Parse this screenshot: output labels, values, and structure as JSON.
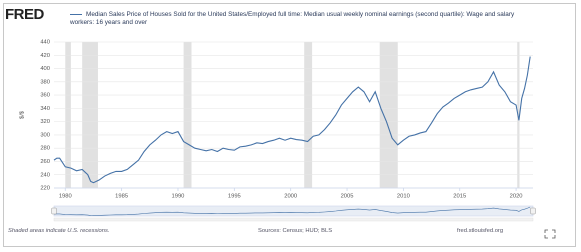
{
  "chart_data": {
    "type": "line",
    "logo": "FRED",
    "ylabel": "$/$",
    "note": "Shaded areas indicate U.S. recessions.",
    "source": "Sources: Census; HUD; BLS",
    "site": "fred.stlouisfed.org",
    "xlim": [
      1979,
      2021.5
    ],
    "ylim": [
      220,
      440
    ],
    "xticks": [
      1980,
      1985,
      1990,
      1995,
      2000,
      2005,
      2010,
      2015,
      2020
    ],
    "yticks": [
      220,
      240,
      260,
      280,
      300,
      320,
      340,
      360,
      380,
      400,
      420,
      440
    ],
    "grid": true,
    "recessions": [
      [
        1980.0,
        1980.5
      ],
      [
        1981.5,
        1982.9
      ],
      [
        1990.5,
        1991.2
      ],
      [
        2001.2,
        2001.9
      ],
      [
        2007.9,
        2009.5
      ],
      [
        2020.1,
        2020.3
      ]
    ],
    "recession_color": "#e1e1e1",
    "x": [
      1979,
      1979.25,
      1979.5,
      1980,
      1980.5,
      1981,
      1981.5,
      1982,
      1982.25,
      1982.5,
      1983,
      1983.5,
      1984,
      1984.5,
      1985,
      1985.5,
      1986,
      1986.5,
      1987,
      1987.5,
      1988,
      1988.5,
      1989,
      1989.5,
      1990,
      1990.5,
      1991,
      1991.5,
      1992,
      1992.5,
      1993,
      1993.5,
      1994,
      1994.5,
      1995,
      1995.5,
      1996,
      1996.5,
      1997,
      1997.5,
      1998,
      1998.5,
      1999,
      1999.5,
      2000,
      2000.5,
      2001,
      2001.5,
      2002,
      2002.5,
      2003,
      2003.5,
      2004,
      2004.5,
      2005,
      2005.5,
      2006,
      2006.5,
      2007,
      2007.5,
      2008,
      2008.5,
      2009,
      2009.5,
      2010,
      2010.5,
      2011,
      2011.5,
      2012,
      2012.5,
      2013,
      2013.5,
      2014,
      2014.5,
      2015,
      2015.5,
      2016,
      2016.5,
      2017,
      2017.5,
      2018,
      2018.5,
      2019,
      2019.5,
      2020,
      2020.25,
      2020.5,
      2020.75,
      2021,
      2021.25
    ],
    "series": [
      {
        "name": "Median Sales Price of Houses Sold for the United States/Employed full time: Median usual weekly nominal earnings (second quartile): Wage and salary workers: 16 years and over",
        "color": "#4572a7",
        "values": [
          262,
          265,
          265,
          252,
          250,
          246,
          248,
          240,
          230,
          228,
          232,
          238,
          242,
          245,
          245,
          248,
          255,
          262,
          275,
          285,
          292,
          300,
          305,
          302,
          305,
          290,
          285,
          280,
          278,
          276,
          278,
          275,
          280,
          278,
          277,
          282,
          283,
          285,
          288,
          287,
          290,
          292,
          295,
          292,
          295,
          293,
          292,
          290,
          298,
          300,
          308,
          318,
          330,
          345,
          355,
          365,
          372,
          365,
          350,
          365,
          340,
          320,
          295,
          285,
          292,
          298,
          300,
          303,
          305,
          318,
          332,
          342,
          348,
          355,
          360,
          365,
          368,
          370,
          372,
          380,
          395,
          375,
          365,
          350,
          345,
          322,
          355,
          370,
          390,
          418
        ]
      }
    ]
  }
}
